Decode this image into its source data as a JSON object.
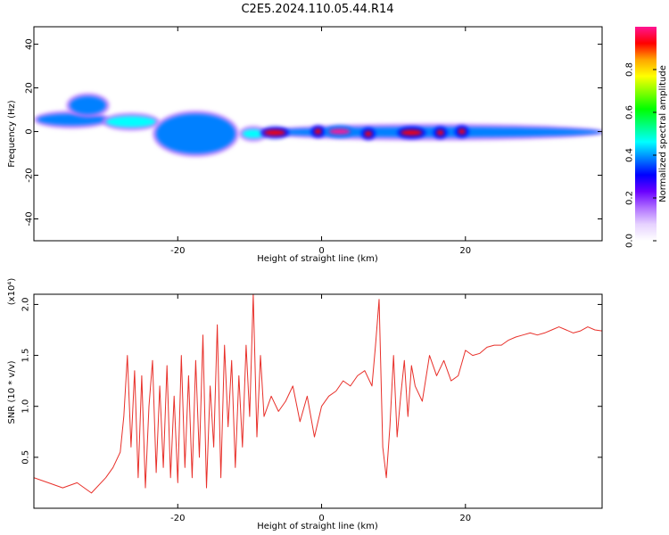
{
  "title": "C2E5.2024.110.05.44.R14",
  "chart_data": [
    {
      "type": "heatmap",
      "xlabel": "Height of straight line (km)",
      "ylabel": "Frequency (Hz)",
      "xlim": [
        -40,
        39
      ],
      "ylim": [
        -50,
        48
      ],
      "xticks": [
        -20,
        0,
        20
      ],
      "xtick_labels": [
        "-20",
        "0",
        "20"
      ],
      "yticks": [
        40,
        20,
        0,
        -20,
        -40
      ],
      "ytick_labels": [
        "40",
        "20",
        "0",
        "-20",
        "-40"
      ],
      "colorbar": {
        "label": "Normalized spectral amplitude",
        "range": [
          0,
          1
        ],
        "ticks": [
          0.0,
          0.2,
          0.4,
          0.6,
          0.8
        ],
        "tick_labels": [
          "0.0",
          "0.2",
          "0.4",
          "0.6",
          "0.8"
        ],
        "colormap": [
          "#ffffff",
          "#e6d2ff",
          "#b070ff",
          "#6a00ff",
          "#0000ff",
          "#0080ff",
          "#00ffff",
          "#00ff80",
          "#00ff00",
          "#80ff00",
          "#ffff00",
          "#ffa500",
          "#ff0000",
          "#ff1493"
        ]
      },
      "features": [
        {
          "x": [
            -39.5,
            -30
          ],
          "f": [
            3,
            8
          ],
          "amp": 0.4
        },
        {
          "x": [
            -35,
            -30
          ],
          "f": [
            8,
            16
          ],
          "amp": 0.35
        },
        {
          "x": [
            -30,
            -23
          ],
          "f": [
            2,
            7
          ],
          "amp": 0.45
        },
        {
          "x": [
            -23,
            -12
          ],
          "f": [
            -10,
            8
          ],
          "amp": 0.4
        },
        {
          "x": [
            -11,
            -8
          ],
          "f": [
            -3,
            1
          ],
          "amp": 0.45
        },
        {
          "x": [
            -8,
            39
          ],
          "f": [
            -2.5,
            2
          ],
          "amp": 0.35
        },
        {
          "x": [
            -8,
            -5
          ],
          "f": [
            -1,
            0
          ],
          "amp": 0.9
        },
        {
          "x": [
            -1,
            0
          ],
          "f": [
            -0.5,
            0.5
          ],
          "amp": 0.95
        },
        {
          "x": [
            1,
            4
          ],
          "f": [
            -0.5,
            0.5
          ],
          "amp": 1.0
        },
        {
          "x": [
            6,
            7
          ],
          "f": [
            -1.5,
            -0.5
          ],
          "amp": 0.95
        },
        {
          "x": [
            11,
            14
          ],
          "f": [
            -1,
            0
          ],
          "amp": 0.9
        },
        {
          "x": [
            16,
            17
          ],
          "f": [
            -1,
            0
          ],
          "amp": 0.9
        },
        {
          "x": [
            19,
            20
          ],
          "f": [
            -0.5,
            0.5
          ],
          "amp": 0.95
        }
      ]
    },
    {
      "type": "line",
      "xlabel": "Height of straight line (km)",
      "ylabel": "SNR (10 * v/v)",
      "y_multiplier": "(x10⁴)",
      "xlim": [
        -40,
        39
      ],
      "ylim": [
        0.0,
        2.1
      ],
      "xticks": [
        -20,
        0,
        20
      ],
      "xtick_labels": [
        "-20",
        "0",
        "20"
      ],
      "yticks": [
        0.5,
        1.0,
        1.5,
        2.0
      ],
      "ytick_labels": [
        "0.5",
        "1.0",
        "1.5",
        "2.0"
      ],
      "color": "#e8302a",
      "series": [
        {
          "x": [
            -40,
            -38,
            -36,
            -34,
            -32,
            -30,
            -29,
            -28,
            -27.5,
            -27,
            -26.5,
            -26,
            -25.5,
            -25,
            -24.5,
            -24,
            -23.5,
            -23,
            -22.5,
            -22,
            -21.5,
            -21,
            -20.5,
            -20,
            -19.5,
            -19,
            -18.5,
            -18,
            -17.5,
            -17,
            -16.5,
            -16,
            -15.5,
            -15,
            -14.5,
            -14,
            -13.5,
            -13,
            -12.5,
            -12,
            -11.5,
            -11,
            -10.5,
            -10,
            -9.5,
            -9,
            -8.5,
            -8,
            -7,
            -6,
            -5,
            -4,
            -3,
            -2,
            -1,
            0,
            1,
            2,
            3,
            4,
            5,
            6,
            7,
            7.5,
            8,
            8.5,
            9,
            9.5,
            10,
            10.5,
            11,
            11.5,
            12,
            12.5,
            13,
            14,
            15,
            16,
            17,
            18,
            19,
            20,
            21,
            22,
            23,
            24,
            25,
            26,
            27,
            28,
            29,
            30,
            31,
            32,
            33,
            34,
            35,
            36,
            37,
            38,
            39
          ],
          "y": [
            0.3,
            0.25,
            0.2,
            0.25,
            0.15,
            0.3,
            0.4,
            0.55,
            0.9,
            1.5,
            0.6,
            1.35,
            0.3,
            1.3,
            0.2,
            1.0,
            1.45,
            0.35,
            1.2,
            0.4,
            1.4,
            0.3,
            1.1,
            0.25,
            1.5,
            0.4,
            1.3,
            0.3,
            1.45,
            0.5,
            1.7,
            0.2,
            1.2,
            0.6,
            1.8,
            0.3,
            1.6,
            0.8,
            1.45,
            0.4,
            1.3,
            0.6,
            1.6,
            0.9,
            2.1,
            0.7,
            1.5,
            0.9,
            1.1,
            0.95,
            1.05,
            1.2,
            0.85,
            1.1,
            0.7,
            1.0,
            1.1,
            1.15,
            1.25,
            1.2,
            1.3,
            1.35,
            1.2,
            1.6,
            2.05,
            0.6,
            0.3,
            0.8,
            1.5,
            0.7,
            1.1,
            1.45,
            0.9,
            1.4,
            1.2,
            1.05,
            1.5,
            1.3,
            1.45,
            1.25,
            1.3,
            1.55,
            1.5,
            1.52,
            1.58,
            1.6,
            1.6,
            1.65,
            1.68,
            1.7,
            1.72,
            1.7,
            1.72,
            1.75,
            1.78,
            1.75,
            1.72,
            1.74,
            1.78,
            1.75,
            1.74
          ]
        }
      ]
    }
  ]
}
